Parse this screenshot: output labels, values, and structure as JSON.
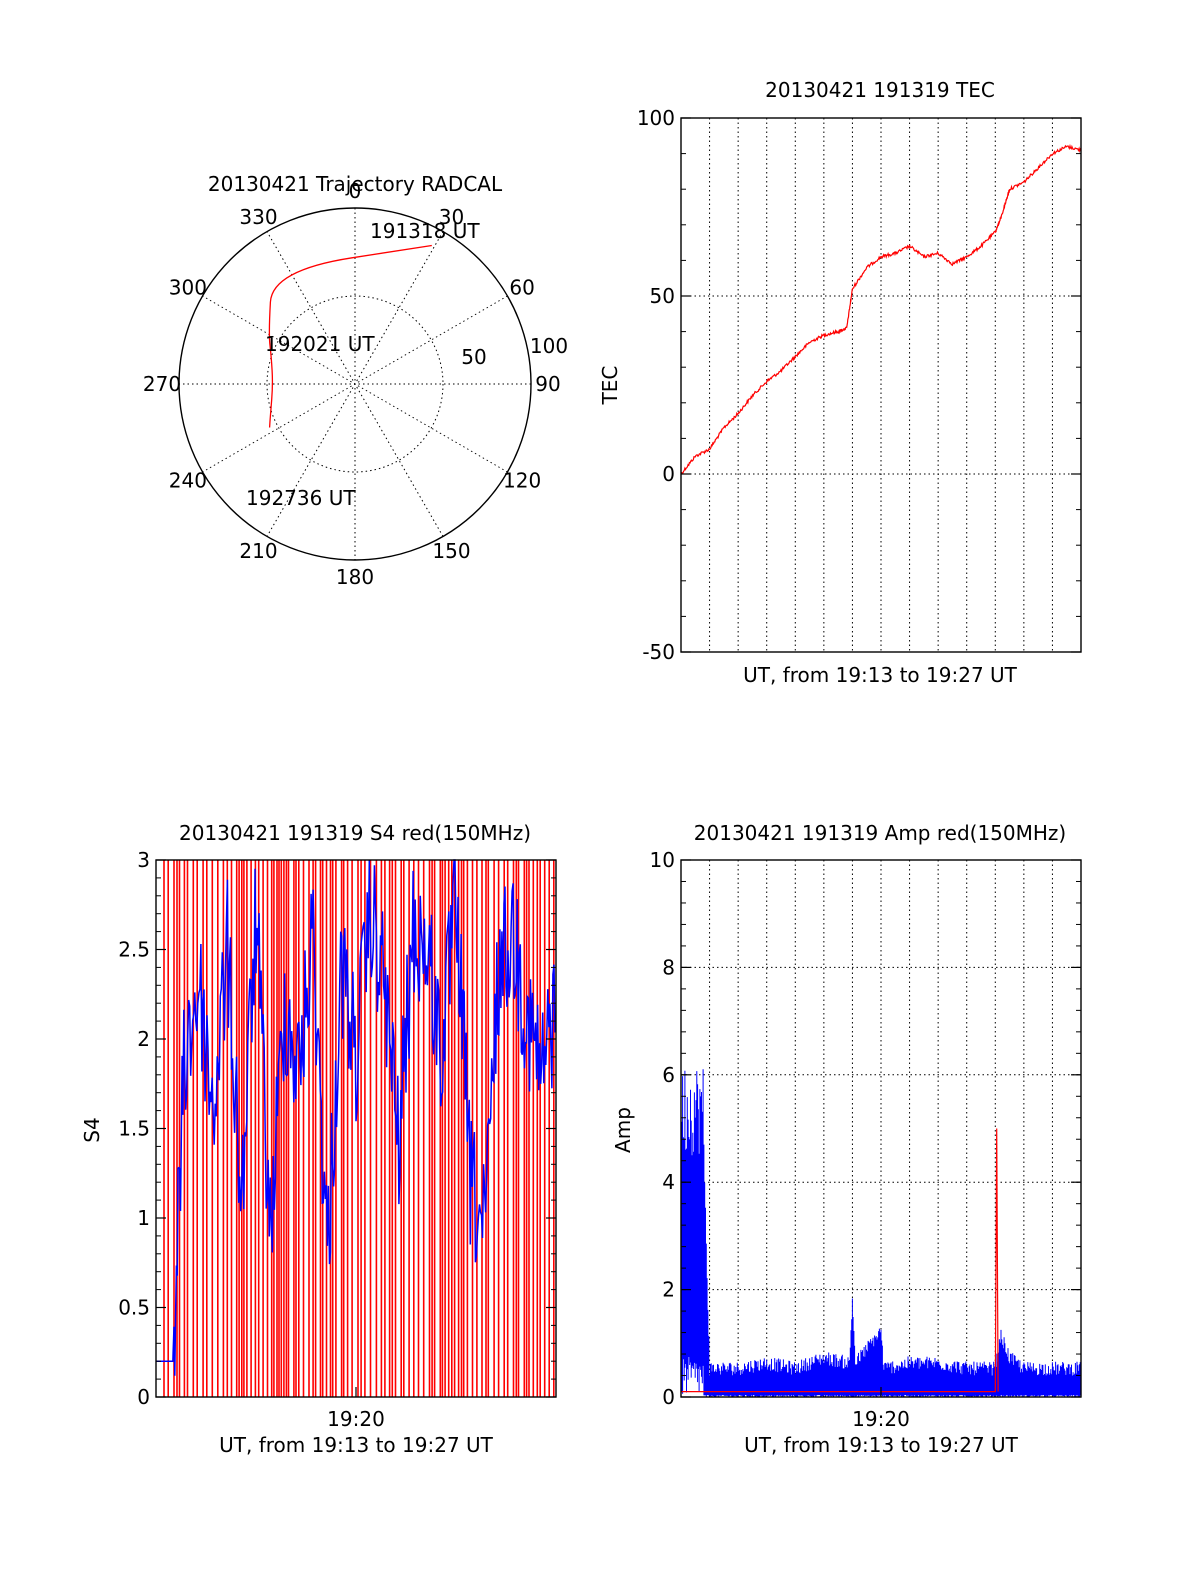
{
  "colors": {
    "red": "#ff0000",
    "blue": "#0000ff",
    "ink": "#000000"
  },
  "chart_data": [
    {
      "id": "trajectory",
      "type": "scatter",
      "title": "20130421 Trajectory RADCAL",
      "polar": true,
      "azimuth_tick_labels": [
        "0",
        "30",
        "60",
        "90",
        "120",
        "150",
        "180",
        "210",
        "240",
        "270",
        "300",
        "330"
      ],
      "elevation_tick_labels": [
        "100",
        "50"
      ],
      "annotations": [
        "191318 UT",
        "192021 UT",
        "192736 UT"
      ],
      "trajectory": [
        {
          "az": 29,
          "el": 9
        },
        {
          "az": 324,
          "el": 18
        },
        {
          "az": 300,
          "el": 39
        },
        {
          "az": 288,
          "el": 45
        },
        {
          "az": 270,
          "el": 48
        },
        {
          "az": 250,
          "el": 44
        },
        {
          "az": 243,
          "el": 41
        }
      ],
      "grid": true
    },
    {
      "id": "tec",
      "type": "line",
      "title": "20130421 191319 TEC",
      "ylabel": "TEC",
      "xlabel": "UT, from 19:13 to 19:27 UT",
      "ylim": [
        -50,
        100
      ],
      "yticks": [
        "-50",
        "0",
        "50",
        "100"
      ],
      "xlim_minutes": [
        0,
        14
      ],
      "grid": true,
      "series": [
        {
          "color": "red",
          "x": [
            0,
            0.5,
            1,
            1.5,
            2,
            2.5,
            3,
            3.5,
            4,
            4.5,
            5,
            5.5,
            5.8,
            6,
            6.5,
            7,
            7.5,
            8,
            8.5,
            9,
            9.5,
            10,
            10.5,
            11,
            11.2,
            11.5,
            12,
            12.5,
            13,
            13.5,
            14
          ],
          "y": [
            0,
            5,
            7,
            13,
            17,
            22,
            26,
            29,
            33,
            37,
            39,
            40,
            41,
            52,
            58,
            61,
            62,
            64,
            61,
            62,
            59,
            61,
            64,
            68,
            72,
            80,
            82,
            86,
            90,
            92,
            91
          ]
        }
      ]
    },
    {
      "id": "s4",
      "type": "line",
      "title": "20130421 191319 S4 red(150MHz)",
      "ylabel": "S4",
      "xlabel": "UT, from 19:13 to 19:27 UT",
      "xtick_labels": [
        "19:20"
      ],
      "ylim": [
        0,
        3
      ],
      "yticks": [
        "0",
        "0.5",
        "1",
        "1.5",
        "2",
        "2.5",
        "3"
      ],
      "xlim_minutes": [
        0,
        14
      ],
      "series": [
        {
          "color": "red",
          "description_values": "dense oscillation between 0 and 3 across full interval"
        },
        {
          "color": "blue",
          "x": [
            0,
            0.5,
            0.6,
            1,
            1.5,
            2,
            2.5,
            3,
            3.5,
            4,
            4.5,
            5,
            5.5,
            6,
            6.5,
            7,
            7.5,
            8,
            8.5,
            9,
            9.5,
            10,
            10.5,
            11,
            11.5,
            12,
            12.5,
            13,
            13.5,
            14
          ],
          "y": [
            0.2,
            0.2,
            0.2,
            1.9,
            2.3,
            1.6,
            2.5,
            1.1,
            2.7,
            0.9,
            2.2,
            1.8,
            2.6,
            0.8,
            2.4,
            1.9,
            2.7,
            2.3,
            1.4,
            2.6,
            2.5,
            1.9,
            2.8,
            1.2,
            0.9,
            2.4,
            2.6,
            2.1,
            1.8,
            2.2
          ]
        }
      ]
    },
    {
      "id": "amp",
      "type": "line",
      "title": "20130421 191319 Amp red(150MHz)",
      "ylabel": "Amp",
      "xlabel": "UT, from 19:13 to 19:27 UT",
      "xtick_labels": [
        "19:20"
      ],
      "ylim": [
        0,
        10
      ],
      "yticks": [
        "0",
        "2",
        "4",
        "6",
        "8",
        "10"
      ],
      "xlim_minutes": [
        0,
        14
      ],
      "grid": true,
      "series": [
        {
          "color": "red",
          "x": [
            0,
            0.8,
            11.0,
            11.05,
            11.1
          ],
          "y": [
            0.1,
            0.1,
            0.1,
            5.0,
            0.1
          ]
        },
        {
          "color": "blue",
          "x": [
            0,
            0.8,
            1.0,
            2,
            3,
            4,
            5,
            5.9,
            6,
            6.1,
            7,
            7.1,
            8,
            9,
            10,
            11,
            11.2,
            11.5,
            12,
            13,
            14
          ],
          "y": [
            4.5,
            4.5,
            0.4,
            0.4,
            0.5,
            0.4,
            0.6,
            0.5,
            1.7,
            0.5,
            1.1,
            0.4,
            0.5,
            0.5,
            0.4,
            0.4,
            1.0,
            0.6,
            0.4,
            0.4,
            0.4
          ]
        }
      ]
    }
  ]
}
